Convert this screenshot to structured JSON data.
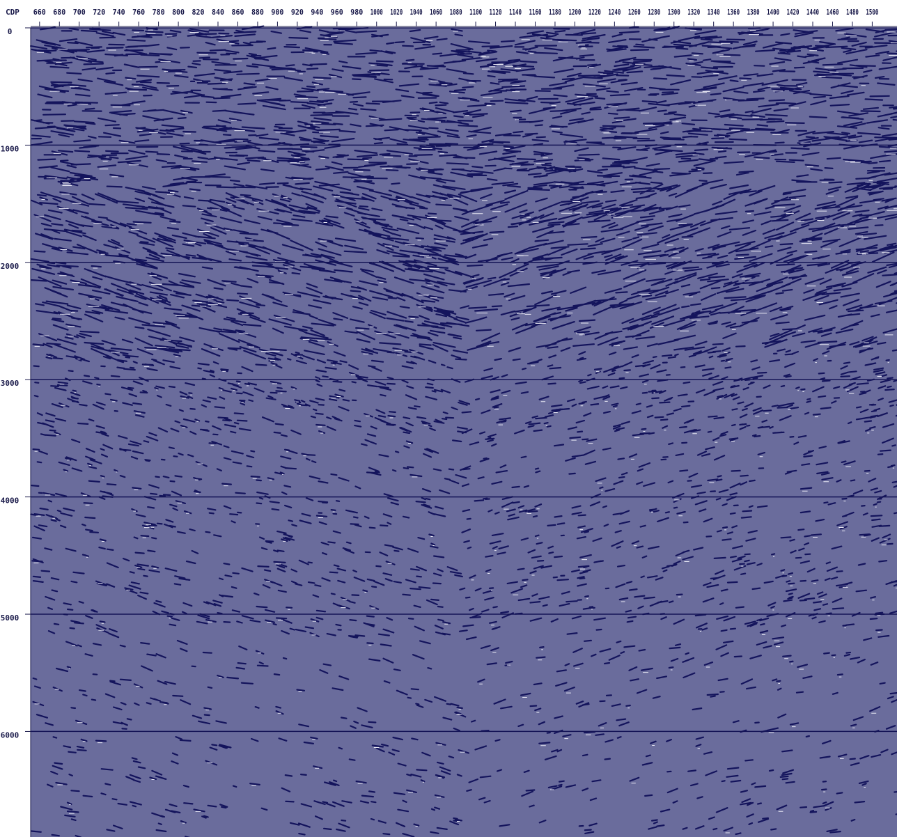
{
  "chart_data": {
    "type": "seismic",
    "xlabel": "CDP",
    "xlim": [
      651,
      1525
    ],
    "xticks": [
      660,
      680,
      700,
      720,
      740,
      760,
      780,
      800,
      820,
      840,
      860,
      880,
      900,
      920,
      940,
      960,
      980,
      1000,
      1020,
      1040,
      1060,
      1080,
      1100,
      1120,
      1140,
      1160,
      1180,
      1200,
      1220,
      1240,
      1260,
      1280,
      1300,
      1320,
      1340,
      1360,
      1380,
      1400,
      1420,
      1440,
      1460,
      1480,
      1500
    ],
    "ylim": [
      0,
      6900
    ],
    "yticks": [
      0,
      1000,
      2000,
      3000,
      4000,
      5000,
      6000
    ],
    "grid": true
  }
}
